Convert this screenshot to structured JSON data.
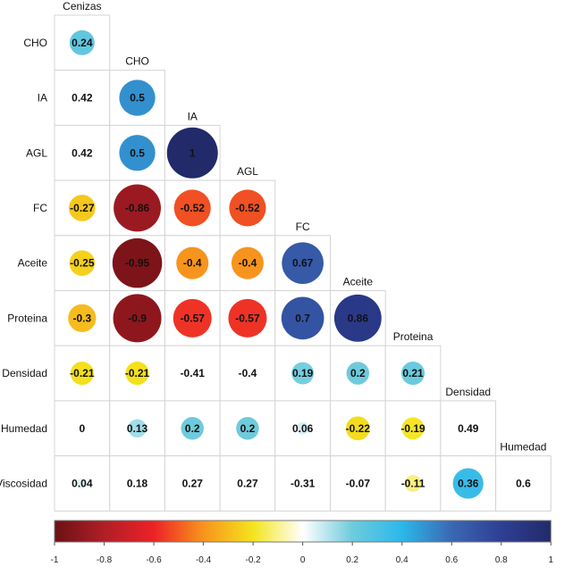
{
  "chart_data": {
    "type": "heatmap",
    "subtype": "correlation-matrix-lower-triangle",
    "row_labels": [
      "CHO",
      "IA",
      "AGL",
      "FC",
      "Aceite",
      "Proteina",
      "Densidad",
      "Humedad",
      "Viscosidad"
    ],
    "col_labels": [
      "Cenizas",
      "CHO",
      "IA",
      "AGL",
      "FC",
      "Aceite",
      "Proteina",
      "Densidad",
      "Humedad"
    ],
    "matrix": [
      [
        0.24
      ],
      [
        0.42,
        0.5
      ],
      [
        0.42,
        0.5,
        1
      ],
      [
        -0.27,
        -0.86,
        -0.52,
        -0.52
      ],
      [
        -0.25,
        -0.95,
        -0.4,
        -0.4,
        0.67
      ],
      [
        -0.3,
        -0.9,
        -0.57,
        -0.57,
        0.7,
        0.86
      ],
      [
        -0.21,
        -0.21,
        -0.41,
        -0.4,
        0.19,
        0.2,
        0.21
      ],
      [
        0,
        0.13,
        0.2,
        0.2,
        0.06,
        -0.22,
        -0.19,
        0.49
      ],
      [
        0.04,
        0.18,
        0.27,
        0.27,
        -0.31,
        -0.07,
        -0.11,
        0.36,
        0.6
      ]
    ],
    "shown": [
      [
        true
      ],
      [
        false,
        true
      ],
      [
        false,
        true,
        true
      ],
      [
        true,
        true,
        true,
        true
      ],
      [
        true,
        true,
        true,
        true,
        true
      ],
      [
        true,
        true,
        true,
        true,
        true,
        true
      ],
      [
        true,
        true,
        false,
        false,
        true,
        true,
        true
      ],
      [
        false,
        true,
        true,
        true,
        true,
        true,
        true,
        false
      ],
      [
        true,
        false,
        false,
        false,
        false,
        false,
        true,
        true,
        false
      ]
    ],
    "colorbar": {
      "range": [
        -1,
        1
      ],
      "ticks": [
        "-1",
        "-0.8",
        "-0.6",
        "-0.4",
        "-0.2",
        "0",
        "0.2",
        "0.4",
        "0.6",
        "0.8",
        "1"
      ]
    },
    "colorscale": [
      [
        -1,
        "#6b1015"
      ],
      [
        -0.8,
        "#b01e26"
      ],
      [
        -0.6,
        "#ec2227"
      ],
      [
        -0.4,
        "#f7941d"
      ],
      [
        -0.2,
        "#f4e41c"
      ],
      [
        0,
        "#ffffff"
      ],
      [
        0.2,
        "#6ecbdc"
      ],
      [
        0.4,
        "#2bb8ea"
      ],
      [
        0.6,
        "#3a68b2"
      ],
      [
        0.8,
        "#2e3f93"
      ],
      [
        1,
        "#222a6a"
      ]
    ],
    "grid": true,
    "legend": "bottom"
  }
}
